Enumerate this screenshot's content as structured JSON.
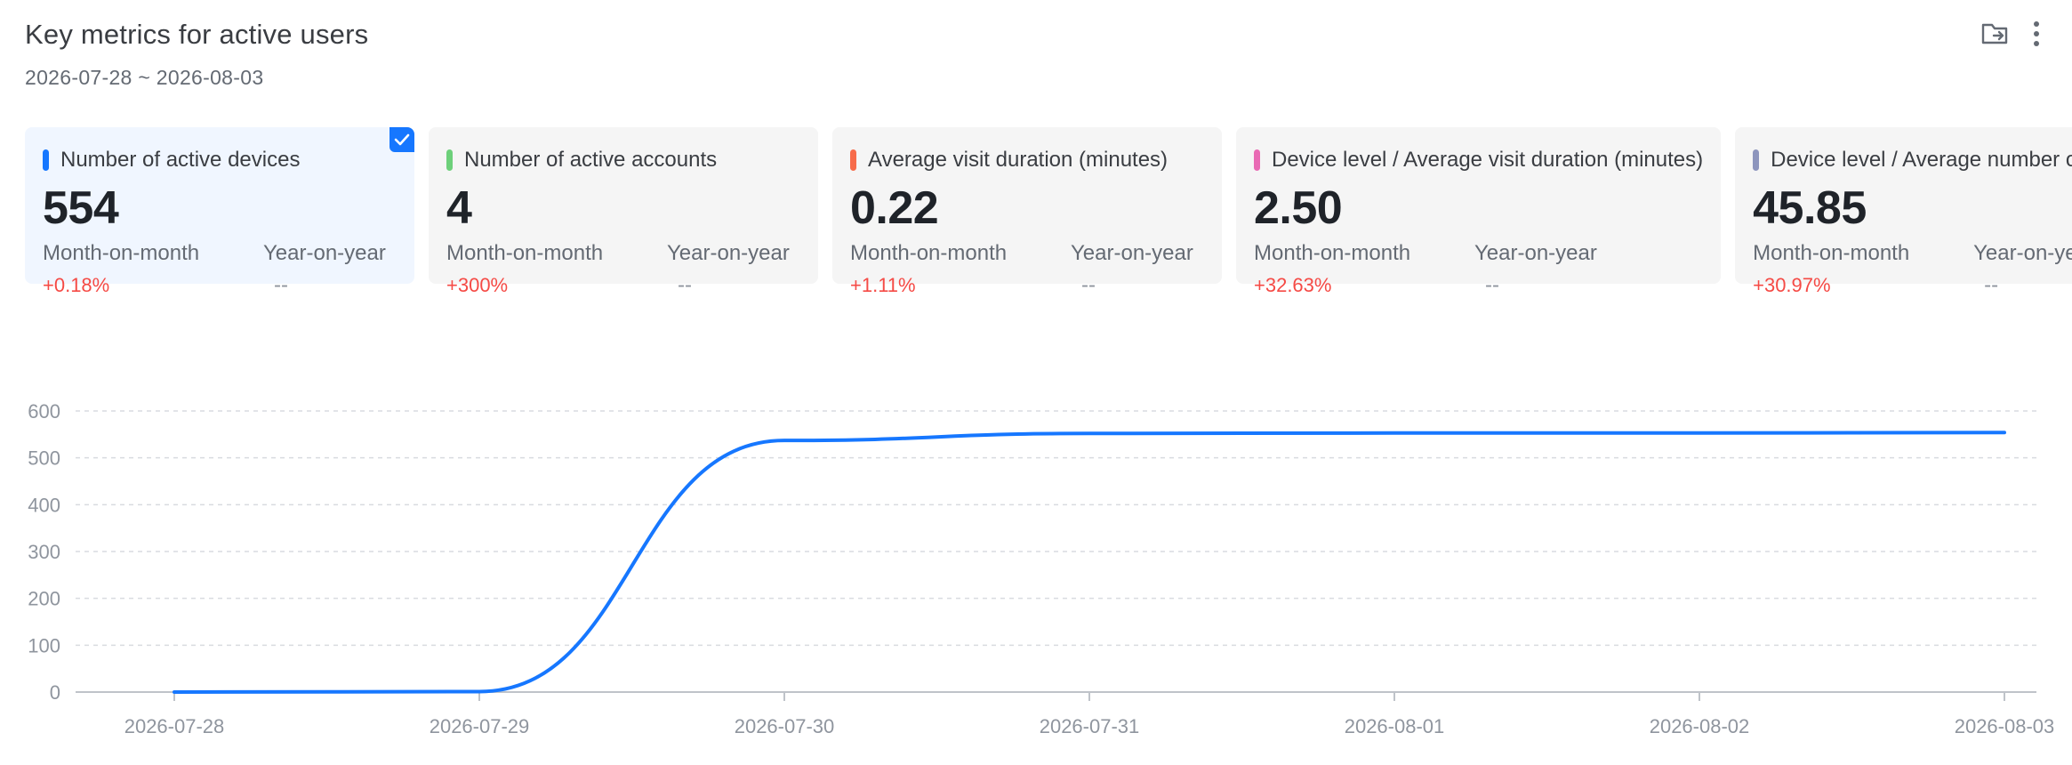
{
  "header": {
    "title": "Key metrics for active users",
    "date_range": "2026-07-28 ~ 2026-08-03"
  },
  "actions": {
    "folder_icon": "folder-arrow-icon",
    "more_icon": "more-vertical-icon"
  },
  "cards": [
    {
      "label": "Number of active devices",
      "value": "554",
      "mom_label": "Month-on-month",
      "mom_change": "+0.18%",
      "yoy_label": "Year-on-year",
      "yoy_value": "--",
      "color": "#1677ff",
      "selected": true
    },
    {
      "label": "Number of active accounts",
      "value": "4",
      "mom_label": "Month-on-month",
      "mom_change": "+300%",
      "yoy_label": "Year-on-year",
      "yoy_value": "--",
      "color": "#6dd07a",
      "selected": false
    },
    {
      "label": "Average visit duration (minutes)",
      "value": "0.22",
      "mom_label": "Month-on-month",
      "mom_change": "+1.11%",
      "yoy_label": "Year-on-year",
      "yoy_value": "--",
      "color": "#f76b4a",
      "selected": false
    },
    {
      "label": "Device level / Average visit duration (minutes)",
      "value": "2.50",
      "mom_label": "Month-on-month",
      "mom_change": "+32.63%",
      "yoy_label": "Year-on-year",
      "yoy_value": "--",
      "color": "#e96ab4",
      "selected": false
    },
    {
      "label": "Device level / Average number of visits",
      "value": "45.85",
      "mom_label": "Month-on-month",
      "mom_change": "+30.97%",
      "yoy_label": "Year-on-year",
      "yoy_value": "--",
      "color": "#8d95bd",
      "selected": false
    }
  ],
  "chart_data": {
    "type": "line",
    "categories": [
      "2026-07-28",
      "2026-07-29",
      "2026-07-30",
      "2026-07-31",
      "2026-08-01",
      "2026-08-02",
      "2026-08-03"
    ],
    "series": [
      {
        "values": [
          0,
          1,
          537,
          552,
          553,
          553,
          554
        ],
        "color": "#1677ff"
      }
    ],
    "ylim": [
      0,
      600
    ],
    "yticks": [
      0,
      100,
      200,
      300,
      400,
      500,
      600
    ],
    "grid": true,
    "smooth": true
  }
}
